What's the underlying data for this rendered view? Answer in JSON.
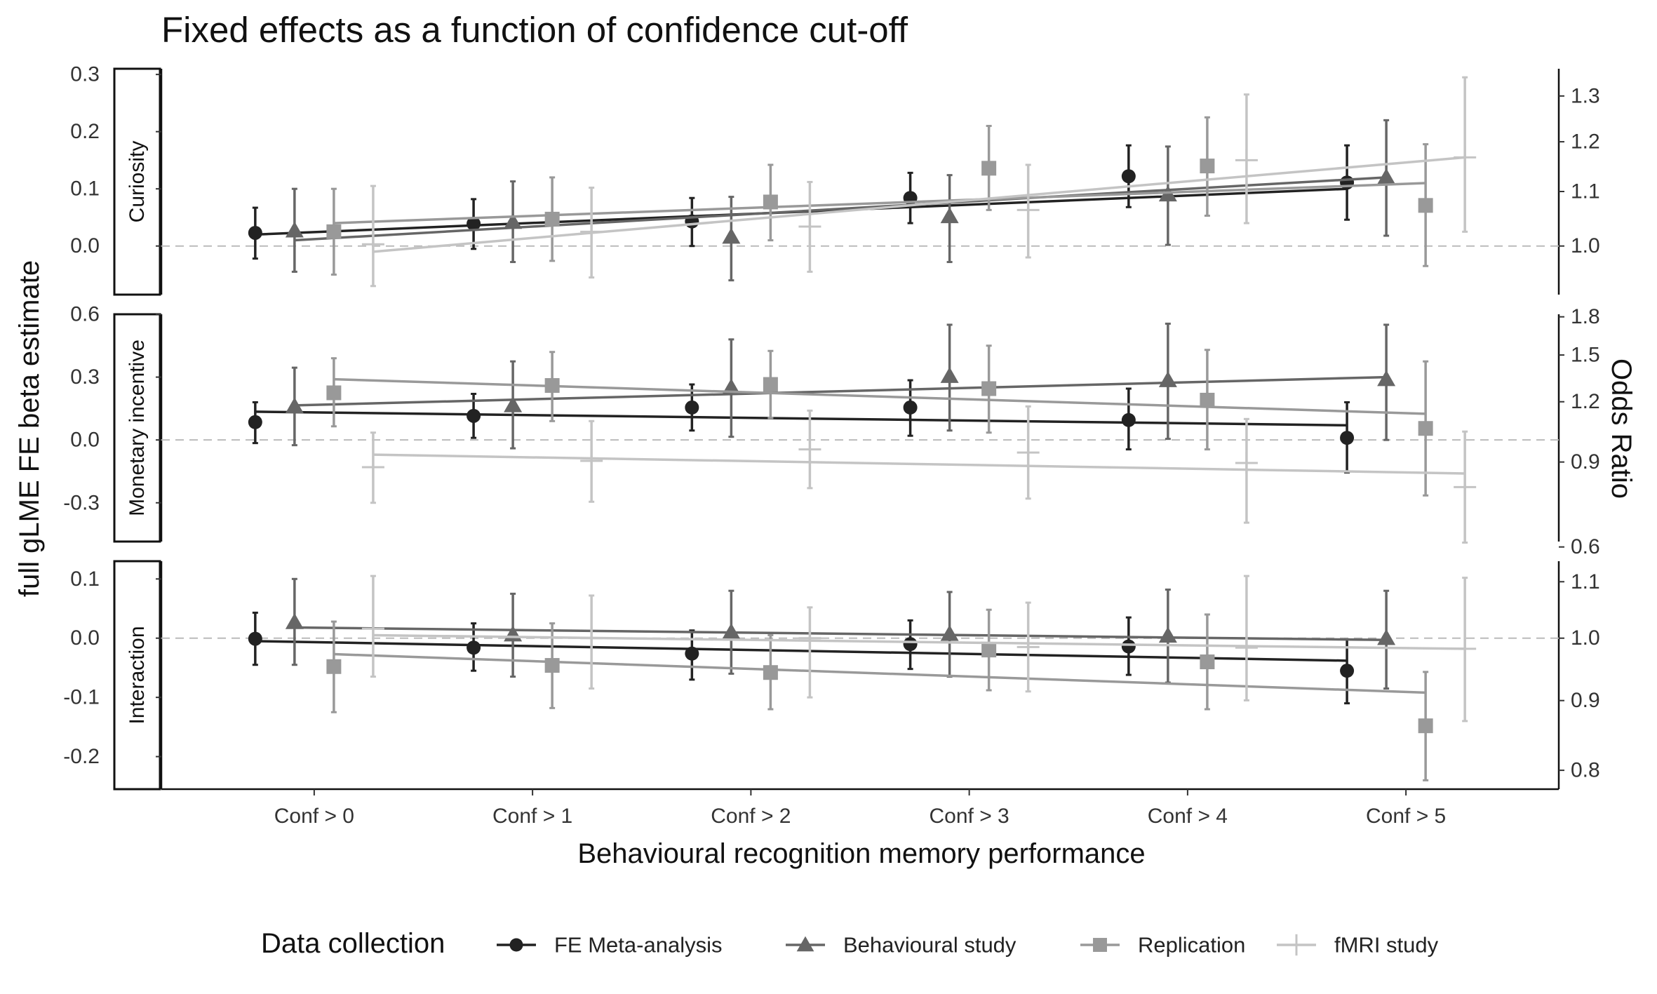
{
  "chart_data": {
    "type": "scatter",
    "title": "Fixed effects as a function of confidence cut-off",
    "xlabel": "Behavioural recognition memory performance",
    "ylabel": "full gLME FE beta estimate",
    "ylabel_right": "Odds Ratio",
    "categories": [
      "Conf > 0",
      "Conf > 1",
      "Conf > 2",
      "Conf > 3",
      "Conf > 4",
      "Conf > 5"
    ],
    "legend": {
      "title": "Data collection",
      "position": "bottom",
      "entries": [
        "FE Meta-analysis",
        "Behavioural study",
        "Replication",
        "fMRI study"
      ]
    },
    "reference_line": 0,
    "grid": false,
    "series_style": [
      {
        "name": "FE Meta-analysis",
        "color": "#222222",
        "shape": "circle",
        "offset": -0.27
      },
      {
        "name": "Behavioural study",
        "color": "#666666",
        "shape": "triangle",
        "offset": -0.09
      },
      {
        "name": "Replication",
        "color": "#999999",
        "shape": "square",
        "offset": 0.09
      },
      {
        "name": "fMRI study",
        "color": "#c4c4c4",
        "shape": "plus",
        "offset": 0.27
      }
    ],
    "panels": [
      {
        "label": "Curiosity",
        "ylim": [
          -0.085,
          0.31
        ],
        "yticks": [
          0.3,
          0.2,
          0.1,
          0.0
        ],
        "yticklabels": [
          "0.3",
          "0.2",
          "0.1",
          "0.0"
        ],
        "or_ticks": [
          1.3,
          1.2,
          1.1,
          1.0
        ],
        "or_ticklabels": [
          "1.3",
          "1.2",
          "1.1",
          "1.0"
        ],
        "series": [
          {
            "name": "FE Meta-analysis",
            "values": [
              0.023,
              0.039,
              0.043,
              0.084,
              0.122,
              0.111
            ],
            "lower": [
              -0.022,
              -0.005,
              0.0,
              0.04,
              0.068,
              0.046
            ],
            "upper": [
              0.067,
              0.082,
              0.084,
              0.128,
              0.176,
              0.176
            ],
            "trend": [
              0.02,
              0.1
            ]
          },
          {
            "name": "Behavioural study",
            "values": [
              0.027,
              0.042,
              0.016,
              0.052,
              0.09,
              0.12
            ],
            "lower": [
              -0.045,
              -0.028,
              -0.06,
              -0.028,
              0.002,
              0.018
            ],
            "upper": [
              0.1,
              0.113,
              0.086,
              0.124,
              0.174,
              0.22
            ],
            "trend": [
              0.01,
              0.12
            ]
          },
          {
            "name": "Replication",
            "values": [
              0.025,
              0.047,
              0.077,
              0.136,
              0.14,
              0.071
            ],
            "lower": [
              -0.05,
              -0.026,
              0.01,
              0.063,
              0.053,
              -0.035
            ],
            "upper": [
              0.1,
              0.12,
              0.142,
              0.21,
              0.225,
              0.178
            ],
            "trend": [
              0.04,
              0.11
            ]
          },
          {
            "name": "fMRI study",
            "values": [
              0.003,
              0.025,
              0.034,
              0.063,
              0.15,
              0.155
            ],
            "lower": [
              -0.07,
              -0.055,
              -0.045,
              -0.02,
              0.04,
              0.025
            ],
            "upper": [
              0.105,
              0.102,
              0.112,
              0.142,
              0.265,
              0.295
            ],
            "trend": [
              -0.01,
              0.155
            ]
          }
        ]
      },
      {
        "label": "Monetary incentive",
        "ylim": [
          -0.485,
          0.6
        ],
        "yticks": [
          0.6,
          0.3,
          0.0,
          -0.3
        ],
        "yticklabels": [
          "0.6",
          "0.3",
          "0.0",
          "-0.3"
        ],
        "or_ticks": [
          1.8,
          1.5,
          1.2,
          0.9,
          0.6
        ],
        "or_ticklabels": [
          "1.8",
          "1.5",
          "1.2",
          "0.9",
          "0.6"
        ],
        "series": [
          {
            "name": "FE Meta-analysis",
            "values": [
              0.085,
              0.115,
              0.155,
              0.155,
              0.095,
              0.01
            ],
            "lower": [
              -0.015,
              0.01,
              0.045,
              0.02,
              -0.045,
              -0.155
            ],
            "upper": [
              0.18,
              0.22,
              0.265,
              0.285,
              0.245,
              0.18
            ],
            "trend": [
              0.135,
              0.07
            ]
          },
          {
            "name": "Behavioural study",
            "values": [
              0.16,
              0.165,
              0.25,
              0.305,
              0.285,
              0.29
            ],
            "lower": [
              -0.025,
              -0.04,
              0.015,
              0.045,
              0.005,
              0.0
            ],
            "upper": [
              0.345,
              0.375,
              0.48,
              0.55,
              0.555,
              0.55
            ],
            "trend": [
              0.165,
              0.3
            ]
          },
          {
            "name": "Replication",
            "values": [
              0.225,
              0.26,
              0.265,
              0.245,
              0.19,
              0.055
            ],
            "lower": [
              0.065,
              0.09,
              0.105,
              0.035,
              -0.045,
              -0.265
            ],
            "upper": [
              0.39,
              0.42,
              0.425,
              0.45,
              0.43,
              0.375
            ],
            "trend": [
              0.29,
              0.125
            ]
          },
          {
            "name": "fMRI study",
            "values": [
              -0.13,
              -0.1,
              -0.045,
              -0.06,
              -0.11,
              -0.225
            ],
            "lower": [
              -0.3,
              -0.295,
              -0.23,
              -0.28,
              -0.395,
              -0.49
            ],
            "upper": [
              0.035,
              0.09,
              0.14,
              0.16,
              0.1,
              0.04
            ],
            "trend": [
              -0.07,
              -0.16
            ]
          }
        ]
      },
      {
        "label": "Interaction",
        "ylim": [
          -0.255,
          0.13
        ],
        "yticks": [
          0.1,
          0.0,
          -0.1,
          -0.2
        ],
        "yticklabels": [
          "0.1",
          "0.0",
          "-0.1",
          "-0.2"
        ],
        "or_ticks": [
          1.1,
          1.0,
          0.9,
          0.8
        ],
        "or_ticklabels": [
          "1.1",
          "1.0",
          "0.9",
          "0.8"
        ],
        "series": [
          {
            "name": "FE Meta-analysis",
            "values": [
              -0.001,
              -0.016,
              -0.026,
              -0.01,
              -0.014,
              -0.055
            ],
            "lower": [
              -0.045,
              -0.055,
              -0.07,
              -0.052,
              -0.062,
              -0.11
            ],
            "upper": [
              0.043,
              0.025,
              0.013,
              0.03,
              0.035,
              -0.002
            ],
            "trend": [
              -0.005,
              -0.038
            ]
          },
          {
            "name": "Behavioural study",
            "values": [
              0.027,
              0.006,
              0.01,
              0.007,
              0.004,
              0.0
            ],
            "lower": [
              -0.045,
              -0.065,
              -0.06,
              -0.065,
              -0.075,
              -0.085
            ],
            "upper": [
              0.1,
              0.075,
              0.08,
              0.078,
              0.082,
              0.08
            ],
            "trend": [
              0.018,
              -0.003
            ]
          },
          {
            "name": "Replication",
            "values": [
              -0.048,
              -0.046,
              -0.058,
              -0.02,
              -0.04,
              -0.148
            ],
            "lower": [
              -0.125,
              -0.118,
              -0.12,
              -0.088,
              -0.12,
              -0.24
            ],
            "upper": [
              0.028,
              0.025,
              0.005,
              0.048,
              0.04,
              -0.057
            ],
            "trend": [
              -0.027,
              -0.092
            ]
          },
          {
            "name": "fMRI study",
            "values": [
              0.016,
              0.0,
              0.0,
              -0.015,
              -0.016,
              -0.018
            ],
            "lower": [
              -0.065,
              -0.085,
              -0.1,
              -0.09,
              -0.105,
              -0.14
            ],
            "upper": [
              0.105,
              0.072,
              0.052,
              0.06,
              0.105,
              0.102
            ],
            "trend": [
              0.005,
              -0.018
            ]
          }
        ]
      }
    ]
  }
}
